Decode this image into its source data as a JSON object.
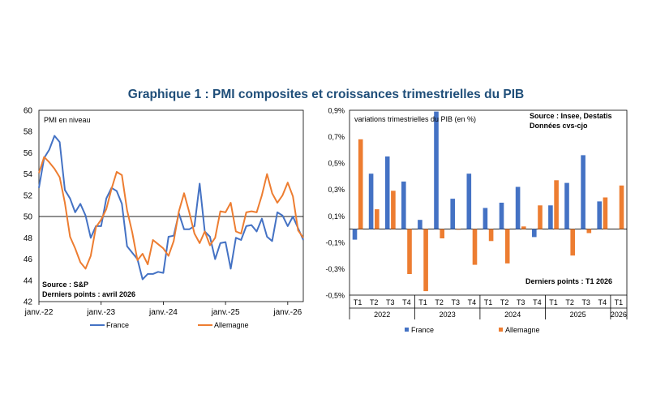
{
  "title": "Graphique 1 : PMI composites et croissances trimestrielles du PIB",
  "colors": {
    "france": "#4472c4",
    "allemagne": "#ed7d31",
    "axis": "#000000",
    "grid": "#bfbfbf"
  },
  "chart_data": [
    {
      "type": "line",
      "annotation_title": "PMI en niveau",
      "source": "Source : S&P",
      "last_point": "Derniers points : avril 2026",
      "ylim": [
        42,
        60
      ],
      "yticks": [
        42,
        44,
        46,
        48,
        50,
        52,
        54,
        56,
        58,
        60
      ],
      "reference_line": 50,
      "x_start": "2022-01",
      "x_end": "2026-04",
      "xtick_labels": [
        "janv.-22",
        "janv.-23",
        "janv.-24",
        "janv.-25",
        "janv.-26"
      ],
      "grid": false,
      "legend_position": "bottom",
      "series": [
        {
          "name": "France",
          "color": "#4472c4",
          "values": [
            52.7,
            55.5,
            56.3,
            57.6,
            57.0,
            52.5,
            51.7,
            50.4,
            51.2,
            50.1,
            48.0,
            49.1,
            49.1,
            51.7,
            52.7,
            52.4,
            51.2,
            47.2,
            46.6,
            46.0,
            44.1,
            44.6,
            44.6,
            44.8,
            44.7,
            48.1,
            48.2,
            50.3,
            48.8,
            48.8,
            49.1,
            53.1,
            48.6,
            48.1,
            46.0,
            47.5,
            47.6,
            45.1,
            48.0,
            47.8,
            49.1,
            49.2,
            48.6,
            49.8,
            48.1,
            47.7,
            50.4,
            50.1,
            49.1,
            50.0,
            48.9,
            47.8
          ]
        },
        {
          "name": "Allemagne",
          "color": "#ed7d31",
          "values": [
            54.1,
            55.6,
            55.1,
            54.5,
            53.7,
            51.3,
            48.1,
            47.0,
            45.7,
            45.1,
            46.3,
            49.0,
            49.7,
            50.7,
            52.6,
            54.2,
            53.9,
            50.6,
            48.5,
            45.9,
            46.5,
            45.5,
            47.8,
            47.4,
            47.0,
            46.3,
            47.7,
            50.5,
            52.2,
            50.4,
            48.4,
            47.5,
            48.6,
            47.3,
            48.0,
            50.5,
            50.4,
            51.3,
            48.6,
            48.4,
            50.4,
            50.5,
            50.4,
            52.0,
            54.0,
            52.2,
            51.3,
            52.0,
            53.2,
            51.9,
            48.7,
            48.0
          ]
        }
      ]
    },
    {
      "type": "bar",
      "annotation_title": "variations trimestrielles du PIB (en %)",
      "source_lines": [
        "Source : Insee, Destatis",
        "Données cvs-cjo"
      ],
      "last_point": "Derniers points : T1 2026",
      "ylim": [
        -0.5,
        0.9
      ],
      "yticks": [
        -0.5,
        -0.3,
        -0.1,
        0.1,
        0.3,
        0.5,
        0.7,
        0.9
      ],
      "ytick_labels": [
        "-0,5%",
        "-0,3%",
        "-0,1%",
        "0,1%",
        "0,3%",
        "0,5%",
        "0,7%",
        "0,9%"
      ],
      "categories": [
        "T1",
        "T2",
        "T3",
        "T4",
        "T1",
        "T2",
        "T3",
        "T4",
        "T1",
        "T2",
        "T3",
        "T4",
        "T1",
        "T2",
        "T3",
        "T4",
        "T1"
      ],
      "groups": [
        {
          "label": "2022",
          "count": 4
        },
        {
          "label": "2023",
          "count": 4
        },
        {
          "label": "2024",
          "count": 4
        },
        {
          "label": "2025",
          "count": 4
        },
        {
          "label": "2026",
          "count": 1
        }
      ],
      "grid": false,
      "legend_position": "bottom",
      "series": [
        {
          "name": "France",
          "color": "#4472c4",
          "values": [
            -0.08,
            0.42,
            0.55,
            0.36,
            0.07,
            0.89,
            0.23,
            0.42,
            0.16,
            0.2,
            0.32,
            -0.06,
            0.18,
            0.35,
            0.56,
            0.21,
            null
          ]
        },
        {
          "name": "Allemagne",
          "color": "#ed7d31",
          "values": [
            0.68,
            0.15,
            0.29,
            -0.34,
            -0.47,
            -0.07,
            0.0,
            -0.27,
            -0.09,
            -0.26,
            0.02,
            0.18,
            0.37,
            -0.2,
            -0.03,
            0.24,
            0.33
          ]
        }
      ]
    }
  ]
}
